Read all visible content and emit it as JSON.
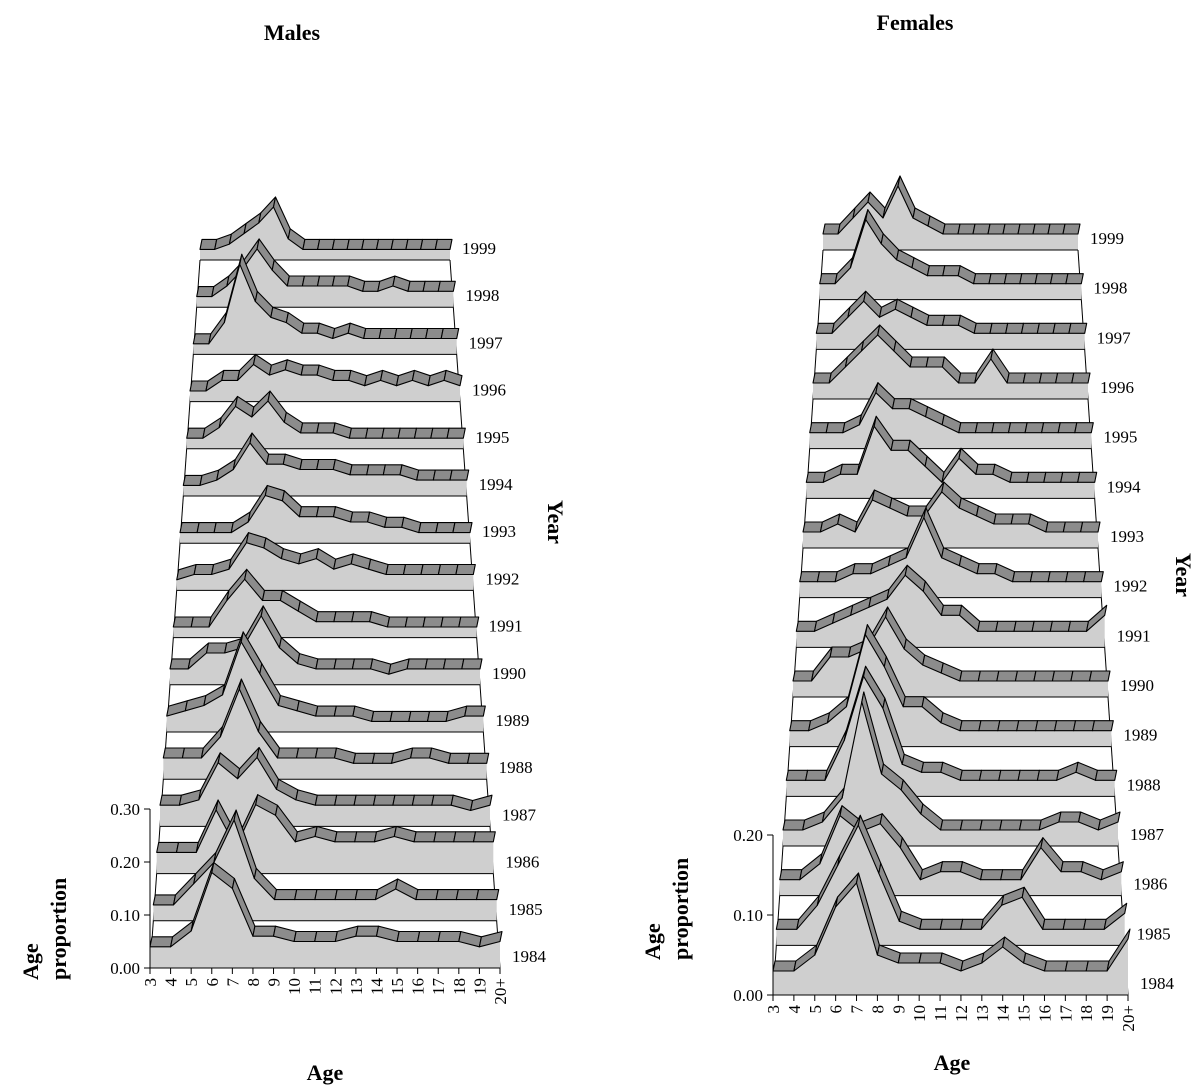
{
  "chart_data": [
    {
      "type": "area",
      "title": "Males",
      "xlabel": "Age",
      "ylabel_lines": [
        "Age",
        "proportion"
      ],
      "zlabel": "Year",
      "x": [
        "3",
        "4",
        "5",
        "6",
        "7",
        "8",
        "9",
        "10",
        "11",
        "12",
        "13",
        "14",
        "15",
        "16",
        "17",
        "18",
        "19",
        "20+"
      ],
      "y_ticks": [
        "0.00",
        "0.10",
        "0.20",
        "0.30"
      ],
      "ylim": [
        0,
        0.3
      ],
      "series": [
        {
          "name": "1984",
          "values": [
            0.04,
            0.04,
            0.07,
            0.18,
            0.15,
            0.06,
            0.06,
            0.05,
            0.05,
            0.05,
            0.06,
            0.06,
            0.05,
            0.05,
            0.05,
            0.05,
            0.04,
            0.05
          ]
        },
        {
          "name": "1985",
          "values": [
            0.03,
            0.03,
            0.07,
            0.11,
            0.19,
            0.08,
            0.04,
            0.04,
            0.04,
            0.04,
            0.04,
            0.04,
            0.06,
            0.04,
            0.04,
            0.04,
            0.04,
            0.04
          ]
        },
        {
          "name": "1986",
          "values": [
            0.04,
            0.04,
            0.04,
            0.12,
            0.05,
            0.13,
            0.11,
            0.06,
            0.07,
            0.06,
            0.06,
            0.06,
            0.07,
            0.06,
            0.06,
            0.06,
            0.06,
            0.06
          ]
        },
        {
          "name": "1987",
          "values": [
            0.04,
            0.04,
            0.05,
            0.12,
            0.09,
            0.13,
            0.07,
            0.05,
            0.04,
            0.04,
            0.04,
            0.04,
            0.04,
            0.04,
            0.04,
            0.04,
            0.03,
            0.04
          ]
        },
        {
          "name": "1988",
          "values": [
            0.04,
            0.04,
            0.04,
            0.08,
            0.17,
            0.09,
            0.04,
            0.04,
            0.04,
            0.04,
            0.03,
            0.03,
            0.03,
            0.04,
            0.04,
            0.03,
            0.03,
            0.03
          ]
        },
        {
          "name": "1989",
          "values": [
            0.03,
            0.04,
            0.05,
            0.07,
            0.17,
            0.11,
            0.05,
            0.04,
            0.03,
            0.03,
            0.03,
            0.02,
            0.02,
            0.02,
            0.02,
            0.02,
            0.03,
            0.03
          ]
        },
        {
          "name": "1990",
          "values": [
            0.03,
            0.03,
            0.06,
            0.06,
            0.07,
            0.13,
            0.07,
            0.04,
            0.03,
            0.03,
            0.03,
            0.03,
            0.02,
            0.03,
            0.03,
            0.03,
            0.03,
            0.03
          ]
        },
        {
          "name": "1991",
          "values": [
            0.02,
            0.02,
            0.02,
            0.07,
            0.11,
            0.07,
            0.07,
            0.05,
            0.03,
            0.03,
            0.03,
            0.03,
            0.02,
            0.02,
            0.02,
            0.02,
            0.02,
            0.02
          ]
        },
        {
          "name": "1992",
          "values": [
            0.02,
            0.03,
            0.03,
            0.04,
            0.09,
            0.08,
            0.06,
            0.05,
            0.06,
            0.04,
            0.05,
            0.04,
            0.03,
            0.03,
            0.03,
            0.03,
            0.03,
            0.03
          ]
        },
        {
          "name": "1993",
          "values": [
            0.02,
            0.02,
            0.02,
            0.02,
            0.04,
            0.09,
            0.08,
            0.05,
            0.05,
            0.05,
            0.04,
            0.04,
            0.03,
            0.03,
            0.02,
            0.02,
            0.02,
            0.02
          ]
        },
        {
          "name": "1994",
          "values": [
            0.02,
            0.02,
            0.03,
            0.05,
            0.1,
            0.06,
            0.06,
            0.05,
            0.05,
            0.05,
            0.04,
            0.04,
            0.04,
            0.04,
            0.03,
            0.03,
            0.03,
            0.03
          ]
        },
        {
          "name": "1995",
          "values": [
            0.02,
            0.02,
            0.04,
            0.08,
            0.06,
            0.09,
            0.05,
            0.03,
            0.03,
            0.03,
            0.02,
            0.02,
            0.02,
            0.02,
            0.02,
            0.02,
            0.02,
            0.02
          ]
        },
        {
          "name": "1996",
          "values": [
            0.02,
            0.02,
            0.04,
            0.04,
            0.07,
            0.05,
            0.06,
            0.05,
            0.05,
            0.04,
            0.04,
            0.03,
            0.04,
            0.03,
            0.04,
            0.03,
            0.04,
            0.03
          ]
        },
        {
          "name": "1997",
          "values": [
            0.02,
            0.02,
            0.06,
            0.17,
            0.1,
            0.07,
            0.06,
            0.04,
            0.04,
            0.03,
            0.04,
            0.03,
            0.03,
            0.03,
            0.03,
            0.03,
            0.03,
            0.03
          ]
        },
        {
          "name": "1998",
          "values": [
            0.02,
            0.02,
            0.04,
            0.07,
            0.11,
            0.07,
            0.04,
            0.04,
            0.04,
            0.04,
            0.04,
            0.03,
            0.03,
            0.04,
            0.03,
            0.03,
            0.03,
            0.03
          ]
        },
        {
          "name": "1999",
          "values": [
            0.02,
            0.02,
            0.03,
            0.05,
            0.07,
            0.1,
            0.04,
            0.02,
            0.02,
            0.02,
            0.02,
            0.02,
            0.02,
            0.02,
            0.02,
            0.02,
            0.02,
            0.02
          ]
        }
      ]
    },
    {
      "type": "area",
      "title": "Females",
      "xlabel": "Age",
      "ylabel_lines": [
        "Age",
        "proportion"
      ],
      "zlabel": "Year",
      "x": [
        "3",
        "4",
        "5",
        "6",
        "7",
        "8",
        "9",
        "10",
        "11",
        "12",
        "13",
        "14",
        "15",
        "16",
        "17",
        "18",
        "19",
        "20+"
      ],
      "y_ticks": [
        "0.00",
        "0.10",
        "0.20"
      ],
      "ylim": [
        0,
        0.2
      ],
      "series": [
        {
          "name": "1984",
          "values": [
            0.03,
            0.03,
            0.05,
            0.11,
            0.14,
            0.05,
            0.04,
            0.04,
            0.04,
            0.03,
            0.04,
            0.06,
            0.04,
            0.03,
            0.03,
            0.03,
            0.03,
            0.07
          ]
        },
        {
          "name": "1985",
          "values": [
            0.02,
            0.02,
            0.05,
            0.1,
            0.15,
            0.09,
            0.03,
            0.02,
            0.02,
            0.02,
            0.02,
            0.05,
            0.06,
            0.02,
            0.02,
            0.02,
            0.02,
            0.04
          ]
        },
        {
          "name": "1986",
          "values": [
            0.02,
            0.02,
            0.04,
            0.1,
            0.08,
            0.09,
            0.06,
            0.02,
            0.03,
            0.03,
            0.02,
            0.02,
            0.02,
            0.06,
            0.03,
            0.03,
            0.02,
            0.03
          ]
        },
        {
          "name": "1987",
          "values": [
            0.02,
            0.02,
            0.03,
            0.06,
            0.18,
            0.09,
            0.07,
            0.04,
            0.02,
            0.02,
            0.02,
            0.02,
            0.02,
            0.02,
            0.03,
            0.03,
            0.02,
            0.03
          ]
        },
        {
          "name": "1988",
          "values": [
            0.02,
            0.02,
            0.02,
            0.07,
            0.15,
            0.11,
            0.04,
            0.03,
            0.03,
            0.02,
            0.02,
            0.02,
            0.02,
            0.02,
            0.02,
            0.03,
            0.02,
            0.02
          ]
        },
        {
          "name": "1989",
          "values": [
            0.02,
            0.02,
            0.03,
            0.05,
            0.14,
            0.1,
            0.05,
            0.05,
            0.03,
            0.02,
            0.02,
            0.02,
            0.02,
            0.02,
            0.02,
            0.02,
            0.02,
            0.02
          ]
        },
        {
          "name": "1990",
          "values": [
            0.02,
            0.02,
            0.05,
            0.05,
            0.06,
            0.1,
            0.06,
            0.04,
            0.03,
            0.02,
            0.02,
            0.02,
            0.02,
            0.02,
            0.02,
            0.02,
            0.02,
            0.02
          ]
        },
        {
          "name": "1991",
          "values": [
            0.02,
            0.02,
            0.03,
            0.04,
            0.05,
            0.06,
            0.09,
            0.07,
            0.04,
            0.04,
            0.02,
            0.02,
            0.02,
            0.02,
            0.02,
            0.02,
            0.02,
            0.04
          ]
        },
        {
          "name": "1992",
          "values": [
            0.02,
            0.02,
            0.02,
            0.03,
            0.03,
            0.04,
            0.05,
            0.1,
            0.05,
            0.04,
            0.03,
            0.03,
            0.02,
            0.02,
            0.02,
            0.02,
            0.02,
            0.02
          ]
        },
        {
          "name": "1993",
          "values": [
            0.02,
            0.02,
            0.03,
            0.02,
            0.06,
            0.05,
            0.04,
            0.04,
            0.07,
            0.05,
            0.04,
            0.03,
            0.03,
            0.03,
            0.02,
            0.02,
            0.02,
            0.02
          ]
        },
        {
          "name": "1994",
          "values": [
            0.02,
            0.02,
            0.03,
            0.03,
            0.09,
            0.06,
            0.06,
            0.04,
            0.02,
            0.05,
            0.03,
            0.03,
            0.02,
            0.02,
            0.02,
            0.02,
            0.02,
            0.02
          ]
        },
        {
          "name": "1995",
          "values": [
            0.02,
            0.02,
            0.02,
            0.03,
            0.07,
            0.05,
            0.05,
            0.04,
            0.03,
            0.02,
            0.02,
            0.02,
            0.02,
            0.02,
            0.02,
            0.02,
            0.02,
            0.02
          ]
        },
        {
          "name": "1996",
          "values": [
            0.02,
            0.02,
            0.04,
            0.06,
            0.08,
            0.06,
            0.04,
            0.04,
            0.04,
            0.02,
            0.02,
            0.05,
            0.02,
            0.02,
            0.02,
            0.02,
            0.02,
            0.02
          ]
        },
        {
          "name": "1997",
          "values": [
            0.02,
            0.02,
            0.04,
            0.06,
            0.04,
            0.05,
            0.04,
            0.03,
            0.03,
            0.03,
            0.02,
            0.02,
            0.02,
            0.02,
            0.02,
            0.02,
            0.02,
            0.02
          ]
        },
        {
          "name": "1998",
          "values": [
            0.02,
            0.02,
            0.04,
            0.1,
            0.07,
            0.05,
            0.04,
            0.03,
            0.03,
            0.03,
            0.02,
            0.02,
            0.02,
            0.02,
            0.02,
            0.02,
            0.02,
            0.02
          ]
        },
        {
          "name": "1999",
          "values": [
            0.02,
            0.02,
            0.04,
            0.06,
            0.04,
            0.08,
            0.04,
            0.03,
            0.02,
            0.02,
            0.02,
            0.02,
            0.02,
            0.02,
            0.02,
            0.02,
            0.02,
            0.02
          ]
        }
      ]
    }
  ]
}
